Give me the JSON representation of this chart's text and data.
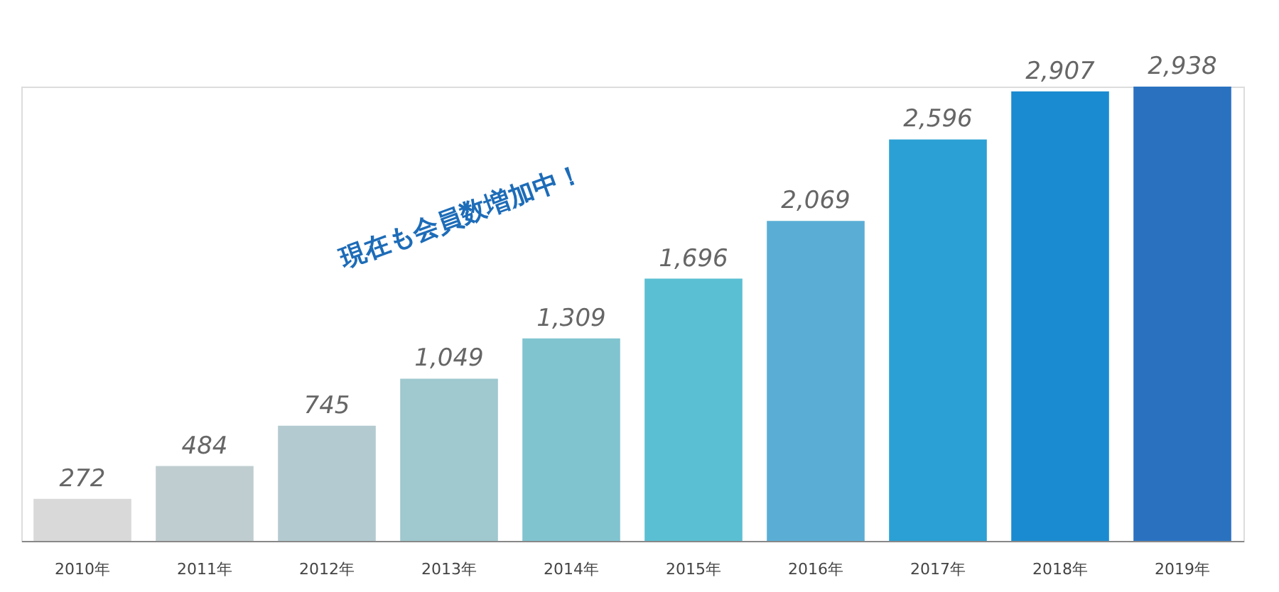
{
  "chart_data": {
    "type": "bar",
    "categories": [
      "2010年",
      "2011年",
      "2012年",
      "2013年",
      "2014年",
      "2015年",
      "2016年",
      "2017年",
      "2018年",
      "2019年"
    ],
    "values": [
      272,
      484,
      745,
      1049,
      1309,
      1696,
      2069,
      2596,
      2907,
      2938
    ],
    "colors": [
      "#d9d9d9",
      "#c0cdd0",
      "#b3cbd0",
      "#9fc8cf",
      "#80c4d0",
      "#5bbfd3",
      "#5aaed6",
      "#2ba0d4",
      "#1a8bd0",
      "#2a72c0"
    ],
    "value_labels": [
      "272",
      "484",
      "745",
      "1,049",
      "1,309",
      "1,696",
      "2,069",
      "2,596",
      "2,907",
      "2,938"
    ],
    "grid": false,
    "annotations": [
      "現在も会員数増加中！"
    ]
  }
}
